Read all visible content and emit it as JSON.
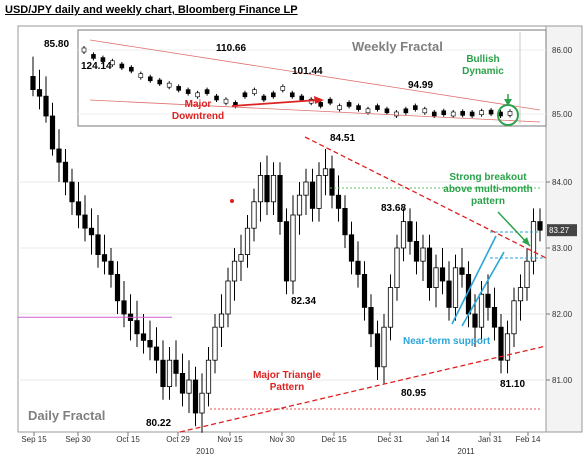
{
  "title": "USD/JPY daily and weekly chart, Bloomberg Finance LP",
  "chart_data": {
    "type": "candlestick",
    "title": "USD/JPY daily and weekly chart, Bloomberg Finance LP",
    "y_ticks": [
      "84.00",
      "83.00",
      "82.00",
      "81.00"
    ],
    "ylim": [
      80.0,
      85.5
    ],
    "current_price": "83.27",
    "x_ticks": [
      "Sep 15",
      "Sep 30",
      "Oct 15",
      "Oct 29",
      "Nov 15",
      "Nov 30",
      "Dec 15",
      "Dec 31",
      "Jan 14",
      "Jan 31",
      "Feb 14"
    ],
    "x_years": [
      "2010",
      "2011"
    ],
    "price_labels": [
      "85.80",
      "84.51",
      "83.68",
      "82.34",
      "80.22",
      "80.95",
      "81.10"
    ],
    "annotations": {
      "daily_fractal": "Daily Fractal",
      "triangle": "Major Triangle Pattern",
      "near_term": "Near-term support",
      "breakout": "Strong breakout above multi-month pattern"
    },
    "inset": {
      "label": "Weekly Fractal",
      "y_ticks": [
        "86.00",
        "85.00"
      ],
      "price_labels": [
        "124.14",
        "110.66",
        "101.44",
        "94.99"
      ],
      "downtrend": "Major Downtrend",
      "bullish": "Bullish Dynamic"
    },
    "daily": [
      {
        "o": 85.6,
        "h": 85.9,
        "l": 85.3,
        "c": 85.4
      },
      {
        "o": 85.4,
        "h": 85.7,
        "l": 85.1,
        "c": 85.3
      },
      {
        "o": 85.3,
        "h": 85.6,
        "l": 84.9,
        "c": 85.0
      },
      {
        "o": 85.0,
        "h": 85.2,
        "l": 84.4,
        "c": 84.5
      },
      {
        "o": 84.5,
        "h": 84.8,
        "l": 84.0,
        "c": 84.3
      },
      {
        "o": 84.3,
        "h": 84.5,
        "l": 83.8,
        "c": 84.0
      },
      {
        "o": 84.0,
        "h": 84.2,
        "l": 83.5,
        "c": 83.7
      },
      {
        "o": 83.7,
        "h": 84.0,
        "l": 83.3,
        "c": 83.5
      },
      {
        "o": 83.5,
        "h": 83.8,
        "l": 83.1,
        "c": 83.3
      },
      {
        "o": 83.3,
        "h": 83.6,
        "l": 82.9,
        "c": 83.2
      },
      {
        "o": 83.2,
        "h": 83.5,
        "l": 82.7,
        "c": 82.9
      },
      {
        "o": 82.9,
        "h": 83.2,
        "l": 82.6,
        "c": 82.8
      },
      {
        "o": 82.8,
        "h": 83.0,
        "l": 82.4,
        "c": 82.6
      },
      {
        "o": 82.6,
        "h": 82.8,
        "l": 82.0,
        "c": 82.2
      },
      {
        "o": 82.2,
        "h": 82.5,
        "l": 81.8,
        "c": 82.0
      },
      {
        "o": 82.0,
        "h": 82.3,
        "l": 81.6,
        "c": 81.9
      },
      {
        "o": 81.9,
        "h": 82.2,
        "l": 81.5,
        "c": 81.7
      },
      {
        "o": 81.7,
        "h": 82.0,
        "l": 81.4,
        "c": 81.6
      },
      {
        "o": 81.6,
        "h": 81.9,
        "l": 81.3,
        "c": 81.5
      },
      {
        "o": 81.5,
        "h": 81.8,
        "l": 81.1,
        "c": 81.3
      },
      {
        "o": 81.3,
        "h": 81.6,
        "l": 80.7,
        "c": 80.9
      },
      {
        "o": 80.9,
        "h": 81.5,
        "l": 80.7,
        "c": 81.3
      },
      {
        "o": 81.3,
        "h": 81.6,
        "l": 80.9,
        "c": 81.1
      },
      {
        "o": 81.1,
        "h": 81.4,
        "l": 80.6,
        "c": 80.8
      },
      {
        "o": 80.8,
        "h": 81.3,
        "l": 80.5,
        "c": 81.0
      },
      {
        "o": 81.0,
        "h": 81.2,
        "l": 80.3,
        "c": 80.5
      },
      {
        "o": 80.5,
        "h": 81.1,
        "l": 80.2,
        "c": 80.8
      },
      {
        "o": 80.8,
        "h": 81.5,
        "l": 80.6,
        "c": 81.3
      },
      {
        "o": 81.3,
        "h": 82.0,
        "l": 81.1,
        "c": 81.8
      },
      {
        "o": 81.8,
        "h": 82.3,
        "l": 81.5,
        "c": 82.0
      },
      {
        "o": 82.0,
        "h": 82.7,
        "l": 81.8,
        "c": 82.5
      },
      {
        "o": 82.5,
        "h": 83.0,
        "l": 82.2,
        "c": 82.8
      },
      {
        "o": 82.8,
        "h": 83.2,
        "l": 82.5,
        "c": 82.9
      },
      {
        "o": 82.9,
        "h": 83.5,
        "l": 82.7,
        "c": 83.3
      },
      {
        "o": 83.3,
        "h": 83.9,
        "l": 83.1,
        "c": 83.7
      },
      {
        "o": 83.7,
        "h": 84.3,
        "l": 83.4,
        "c": 84.1
      },
      {
        "o": 84.1,
        "h": 84.4,
        "l": 83.5,
        "c": 83.7
      },
      {
        "o": 83.7,
        "h": 84.3,
        "l": 83.5,
        "c": 84.1
      },
      {
        "o": 84.1,
        "h": 84.3,
        "l": 83.2,
        "c": 83.4
      },
      {
        "o": 83.4,
        "h": 83.6,
        "l": 82.3,
        "c": 82.5
      },
      {
        "o": 82.5,
        "h": 83.8,
        "l": 82.3,
        "c": 83.5
      },
      {
        "o": 83.5,
        "h": 84.0,
        "l": 83.2,
        "c": 83.8
      },
      {
        "o": 83.8,
        "h": 84.2,
        "l": 83.5,
        "c": 84.0
      },
      {
        "o": 84.0,
        "h": 84.2,
        "l": 83.4,
        "c": 83.6
      },
      {
        "o": 83.6,
        "h": 84.3,
        "l": 83.4,
        "c": 84.1
      },
      {
        "o": 84.1,
        "h": 84.5,
        "l": 83.8,
        "c": 84.2
      },
      {
        "o": 84.2,
        "h": 84.4,
        "l": 83.6,
        "c": 83.8
      },
      {
        "o": 83.8,
        "h": 84.1,
        "l": 83.4,
        "c": 83.6
      },
      {
        "o": 83.6,
        "h": 83.8,
        "l": 83.0,
        "c": 83.2
      },
      {
        "o": 83.2,
        "h": 83.4,
        "l": 82.6,
        "c": 82.8
      },
      {
        "o": 82.8,
        "h": 83.1,
        "l": 82.4,
        "c": 82.6
      },
      {
        "o": 82.6,
        "h": 82.8,
        "l": 81.9,
        "c": 82.1
      },
      {
        "o": 82.1,
        "h": 82.3,
        "l": 81.5,
        "c": 81.7
      },
      {
        "o": 81.7,
        "h": 81.9,
        "l": 81.0,
        "c": 81.2
      },
      {
        "o": 81.2,
        "h": 82.0,
        "l": 80.95,
        "c": 81.8
      },
      {
        "o": 81.8,
        "h": 82.6,
        "l": 81.6,
        "c": 82.4
      },
      {
        "o": 82.4,
        "h": 83.2,
        "l": 82.2,
        "c": 83.0
      },
      {
        "o": 83.0,
        "h": 83.6,
        "l": 82.8,
        "c": 83.4
      },
      {
        "o": 83.4,
        "h": 83.6,
        "l": 82.9,
        "c": 83.1
      },
      {
        "o": 83.1,
        "h": 83.4,
        "l": 82.6,
        "c": 82.8
      },
      {
        "o": 82.8,
        "h": 83.2,
        "l": 82.5,
        "c": 83.0
      },
      {
        "o": 83.0,
        "h": 83.2,
        "l": 82.2,
        "c": 82.4
      },
      {
        "o": 82.4,
        "h": 82.9,
        "l": 82.1,
        "c": 82.7
      },
      {
        "o": 82.7,
        "h": 83.0,
        "l": 82.3,
        "c": 82.5
      },
      {
        "o": 82.5,
        "h": 82.8,
        "l": 81.9,
        "c": 82.1
      },
      {
        "o": 82.1,
        "h": 82.9,
        "l": 81.9,
        "c": 82.7
      },
      {
        "o": 82.7,
        "h": 83.0,
        "l": 82.4,
        "c": 82.6
      },
      {
        "o": 82.6,
        "h": 82.8,
        "l": 81.8,
        "c": 82.0
      },
      {
        "o": 82.0,
        "h": 82.3,
        "l": 81.5,
        "c": 81.8
      },
      {
        "o": 81.8,
        "h": 82.5,
        "l": 81.6,
        "c": 82.3
      },
      {
        "o": 82.3,
        "h": 82.6,
        "l": 81.9,
        "c": 82.1
      },
      {
        "o": 82.1,
        "h": 82.4,
        "l": 81.6,
        "c": 81.8
      },
      {
        "o": 81.8,
        "h": 82.0,
        "l": 81.1,
        "c": 81.3
      },
      {
        "o": 81.3,
        "h": 81.9,
        "l": 81.1,
        "c": 81.7
      },
      {
        "o": 81.7,
        "h": 82.4,
        "l": 81.5,
        "c": 82.2
      },
      {
        "o": 82.2,
        "h": 82.6,
        "l": 81.9,
        "c": 82.4
      },
      {
        "o": 82.4,
        "h": 83.0,
        "l": 82.2,
        "c": 82.8
      },
      {
        "o": 82.8,
        "h": 83.6,
        "l": 82.6,
        "c": 83.4
      },
      {
        "o": 83.4,
        "h": 83.6,
        "l": 83.1,
        "c": 83.27
      }
    ],
    "weekly": [
      86.0,
      85.9,
      85.85,
      85.8,
      85.75,
      85.7,
      85.6,
      85.55,
      85.5,
      85.45,
      85.4,
      85.35,
      85.3,
      85.35,
      85.25,
      85.2,
      85.15,
      85.3,
      85.35,
      85.25,
      85.3,
      85.4,
      85.3,
      85.25,
      85.2,
      85.15,
      85.2,
      85.1,
      85.15,
      85.1,
      85.05,
      85.1,
      85.05,
      85.0,
      85.05,
      85.1,
      85.05,
      85.0,
      85.02,
      85.0,
      85.01,
      85.0,
      85.02,
      85.03,
      85.0,
      85.01
    ]
  }
}
